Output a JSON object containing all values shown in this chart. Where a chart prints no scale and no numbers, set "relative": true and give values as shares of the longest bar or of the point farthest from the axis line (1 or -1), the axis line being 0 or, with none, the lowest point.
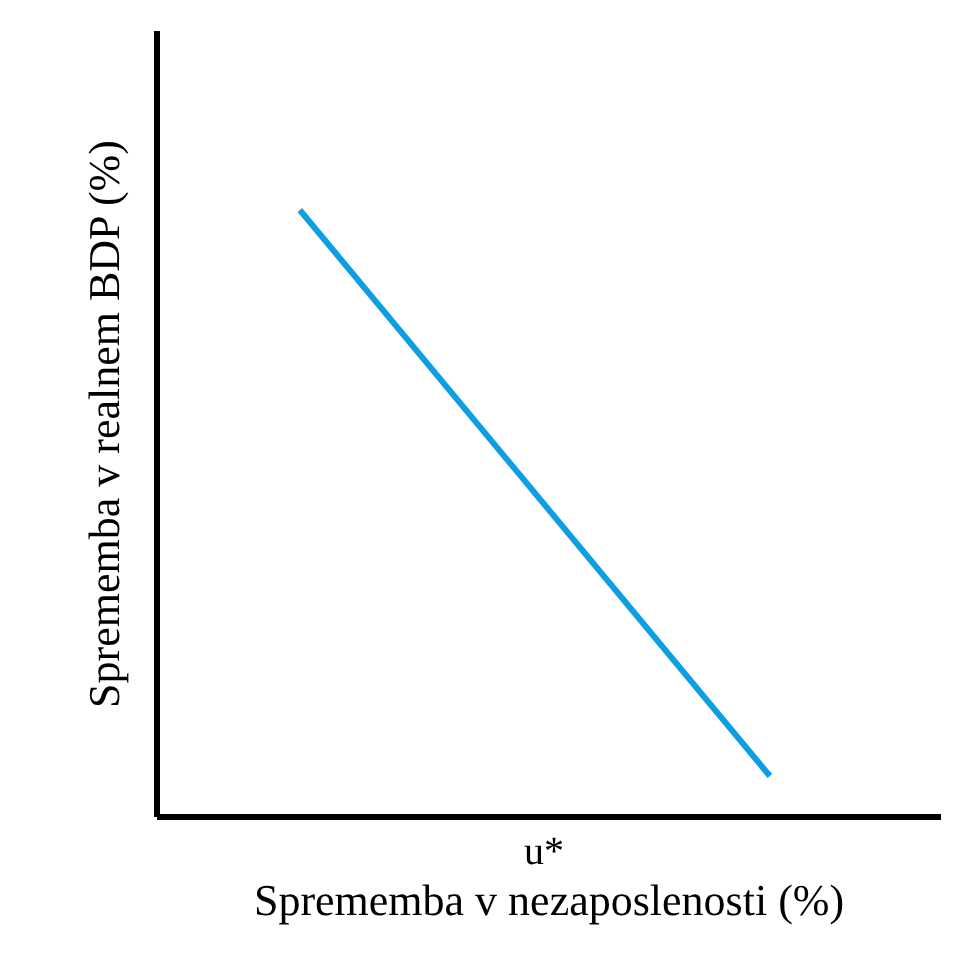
{
  "chart_data": {
    "type": "line",
    "relative": true,
    "xlabel": "Sprememba v nezaposlenosti (%)",
    "ylabel": "Sprememba v realnem BDP (%)",
    "categories": [
      null,
      null
    ],
    "series": [
      {
        "color": "#0f9ee0",
        "values": [
          1,
          0.066
        ]
      }
    ],
    "annotations": [
      "u*"
    ],
    "grid": false,
    "marker": "none",
    "line_style": "solid"
  }
}
